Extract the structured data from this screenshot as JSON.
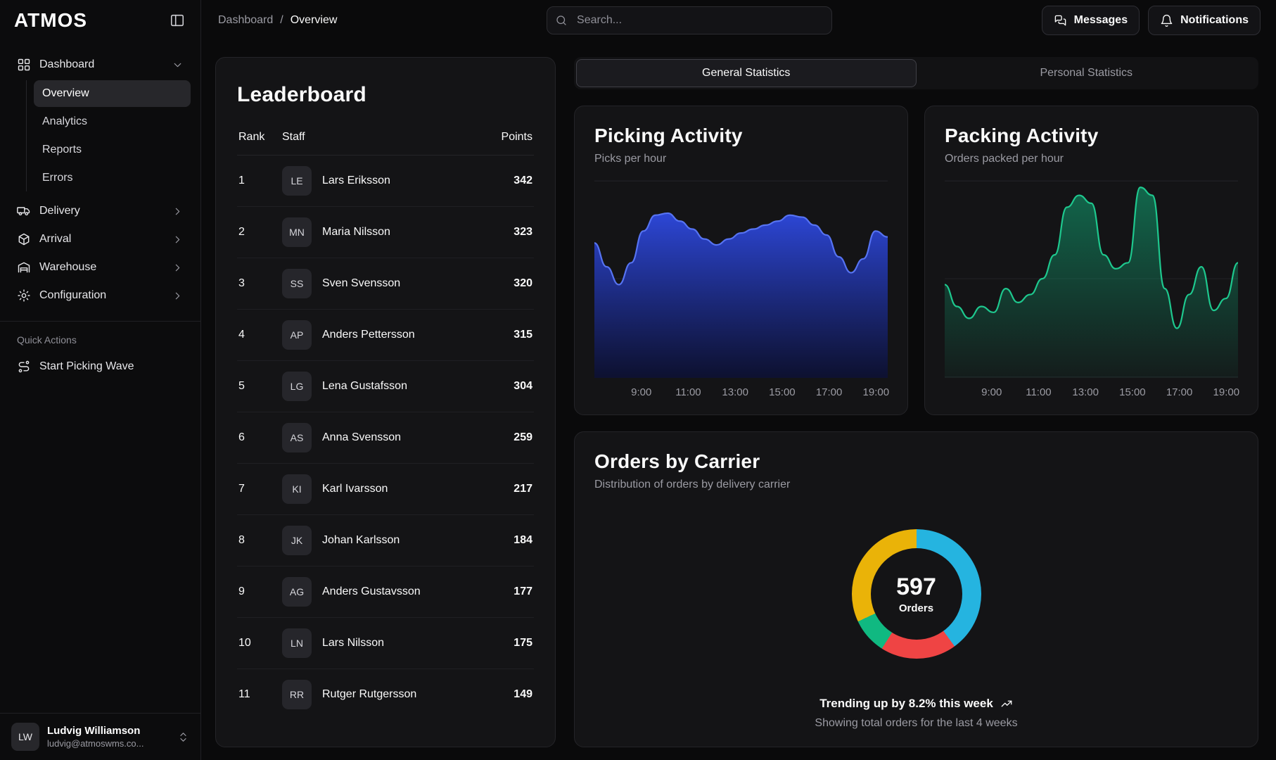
{
  "app": {
    "logo": "ATMOS"
  },
  "sidebar": {
    "nav": [
      {
        "label": "Dashboard",
        "icon": "layout-grid",
        "expanded": true,
        "children": [
          {
            "label": "Overview",
            "active": true
          },
          {
            "label": "Analytics",
            "active": false
          },
          {
            "label": "Reports",
            "active": false
          },
          {
            "label": "Errors",
            "active": false
          }
        ]
      },
      {
        "label": "Delivery",
        "icon": "truck",
        "expanded": false
      },
      {
        "label": "Arrival",
        "icon": "package",
        "expanded": false
      },
      {
        "label": "Warehouse",
        "icon": "warehouse",
        "expanded": false
      },
      {
        "label": "Configuration",
        "icon": "settings",
        "expanded": false
      }
    ],
    "quick_actions_title": "Quick Actions",
    "quick_actions": [
      {
        "label": "Start Picking Wave",
        "icon": "route"
      }
    ],
    "user": {
      "initials": "LW",
      "name": "Ludvig Williamson",
      "email": "ludvig@atmoswms.co..."
    }
  },
  "header": {
    "breadcrumb": [
      "Dashboard",
      "Overview"
    ],
    "breadcrumb_separator": "/",
    "search_placeholder": "Search...",
    "messages_label": "Messages",
    "notifications_label": "Notifications"
  },
  "leaderboard": {
    "title": "Leaderboard",
    "columns": {
      "rank": "Rank",
      "staff": "Staff",
      "points": "Points"
    },
    "rows": [
      {
        "rank": 1,
        "initials": "LE",
        "name": "Lars Eriksson",
        "points": 342
      },
      {
        "rank": 2,
        "initials": "MN",
        "name": "Maria Nilsson",
        "points": 323
      },
      {
        "rank": 3,
        "initials": "SS",
        "name": "Sven Svensson",
        "points": 320
      },
      {
        "rank": 4,
        "initials": "AP",
        "name": "Anders Pettersson",
        "points": 315
      },
      {
        "rank": 5,
        "initials": "LG",
        "name": "Lena Gustafsson",
        "points": 304
      },
      {
        "rank": 6,
        "initials": "AS",
        "name": "Anna Svensson",
        "points": 259
      },
      {
        "rank": 7,
        "initials": "KI",
        "name": "Karl Ivarsson",
        "points": 217
      },
      {
        "rank": 8,
        "initials": "JK",
        "name": "Johan Karlsson",
        "points": 184
      },
      {
        "rank": 9,
        "initials": "AG",
        "name": "Anders Gustavsson",
        "points": 177
      },
      {
        "rank": 10,
        "initials": "LN",
        "name": "Lars Nilsson",
        "points": 175
      },
      {
        "rank": 11,
        "initials": "RR",
        "name": "Rutger Rutgersson",
        "points": 149
      }
    ]
  },
  "tabs": [
    {
      "label": "General Statistics",
      "active": true
    },
    {
      "label": "Personal Statistics",
      "active": false
    }
  ],
  "chart_data": [
    {
      "id": "picking",
      "type": "area",
      "title": "Picking Activity",
      "subtitle": "Picks per hour",
      "stroke": "#5673f2",
      "fill_top": "#2e49e0",
      "fill_top_opacity": 0.95,
      "fill_bottom": "#0c1034",
      "fill_bottom_opacity": 0.85,
      "x_ticks": [
        "9:00",
        "11:00",
        "13:00",
        "15:00",
        "17:00",
        "19:00"
      ],
      "tick_positions": [
        0.16,
        0.32,
        0.48,
        0.64,
        0.8,
        0.96
      ],
      "ylim": [
        0,
        100
      ],
      "values": [
        68,
        56,
        47,
        58,
        74,
        82,
        83,
        79,
        75,
        70,
        67,
        70,
        73,
        75,
        77,
        79,
        82,
        81,
        77,
        72,
        61,
        53,
        60,
        74,
        71
      ]
    },
    {
      "id": "packing",
      "type": "area",
      "title": "Packing Activity",
      "subtitle": "Orders packed per hour",
      "stroke": "#1ec88e",
      "fill_top": "#10b981",
      "fill_top_opacity": 0.5,
      "fill_bottom": "#10b981",
      "fill_bottom_opacity": 0.05,
      "x_ticks": [
        "9:00",
        "11:00",
        "13:00",
        "15:00",
        "17:00",
        "19:00"
      ],
      "tick_positions": [
        0.16,
        0.32,
        0.48,
        0.64,
        0.8,
        0.96
      ],
      "ylim": [
        0,
        100
      ],
      "values": [
        47,
        36,
        30,
        36,
        33,
        45,
        38,
        42,
        50,
        62,
        86,
        92,
        88,
        62,
        55,
        58,
        96,
        92,
        45,
        25,
        42,
        56,
        34,
        40,
        58
      ]
    },
    {
      "id": "orders_by_carrier",
      "type": "donut",
      "title": "Orders by Carrier",
      "subtitle": "Distribution of orders by delivery carrier",
      "total": 597,
      "center_label": "Orders",
      "segments": [
        {
          "color": "#25b4e0",
          "percent": 40
        },
        {
          "color": "#ef4444",
          "percent": 19
        },
        {
          "color": "#10b981",
          "percent": 9
        },
        {
          "color": "#eab308",
          "percent": 32
        }
      ],
      "footer": "Trending up by 8.2% this week",
      "footnote": "Showing total orders for the last 4 weeks"
    }
  ]
}
